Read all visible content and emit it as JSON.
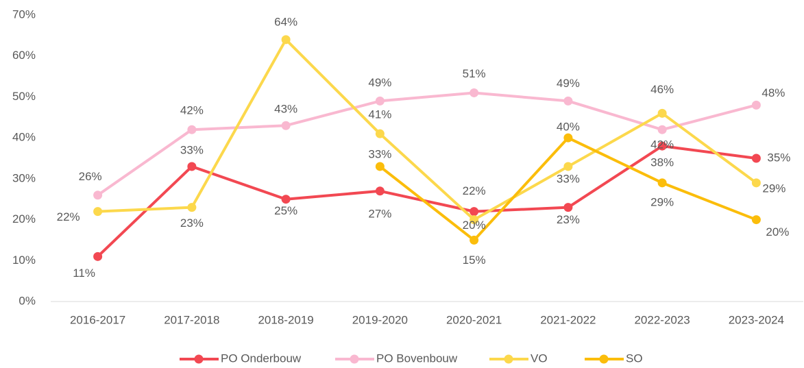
{
  "chart_data": {
    "type": "line",
    "categories": [
      "2016-2017",
      "2017-2018",
      "2018-2019",
      "2019-2020",
      "2020-2021",
      "2021-2022",
      "2022-2023",
      "2023-2024"
    ],
    "ylim": [
      0,
      70
    ],
    "yticks": [
      {
        "value": 0,
        "label": "0%"
      },
      {
        "value": 10,
        "label": "10%"
      },
      {
        "value": 20,
        "label": "20%"
      },
      {
        "value": 30,
        "label": "30%"
      },
      {
        "value": 40,
        "label": "40%"
      },
      {
        "value": 50,
        "label": "50%"
      },
      {
        "value": 60,
        "label": "60%"
      },
      {
        "value": 70,
        "label": "70%"
      }
    ],
    "grid": false,
    "legend": "bottom",
    "series": [
      {
        "name": "PO Onderbouw",
        "color": "#f24852",
        "values": [
          11,
          33,
          25,
          27,
          22,
          23,
          38,
          35
        ],
        "value_labels": [
          "11%",
          "33%",
          "25%",
          "27%",
          "22%",
          "23%",
          "38%",
          "35%"
        ]
      },
      {
        "name": "PO Bovenbouw",
        "color": "#f9b8d0",
        "values": [
          26,
          42,
          43,
          49,
          51,
          49,
          42,
          48
        ],
        "value_labels": [
          "26%",
          "42%",
          "43%",
          "49%",
          "51%",
          "49%",
          "42%",
          "48%"
        ]
      },
      {
        "name": "VO",
        "color": "#fcd84c",
        "values": [
          22,
          23,
          64,
          41,
          20,
          33,
          46,
          29
        ],
        "value_labels": [
          "22%",
          "23%",
          "64%",
          "41%",
          "20%",
          "33%",
          "46%",
          "29%"
        ]
      },
      {
        "name": "SO",
        "color": "#fbbd0b",
        "values": [
          null,
          null,
          null,
          33,
          15,
          40,
          29,
          20
        ],
        "value_labels": [
          null,
          null,
          null,
          "33%",
          "15%",
          "40%",
          "29%",
          "20%"
        ]
      }
    ]
  }
}
